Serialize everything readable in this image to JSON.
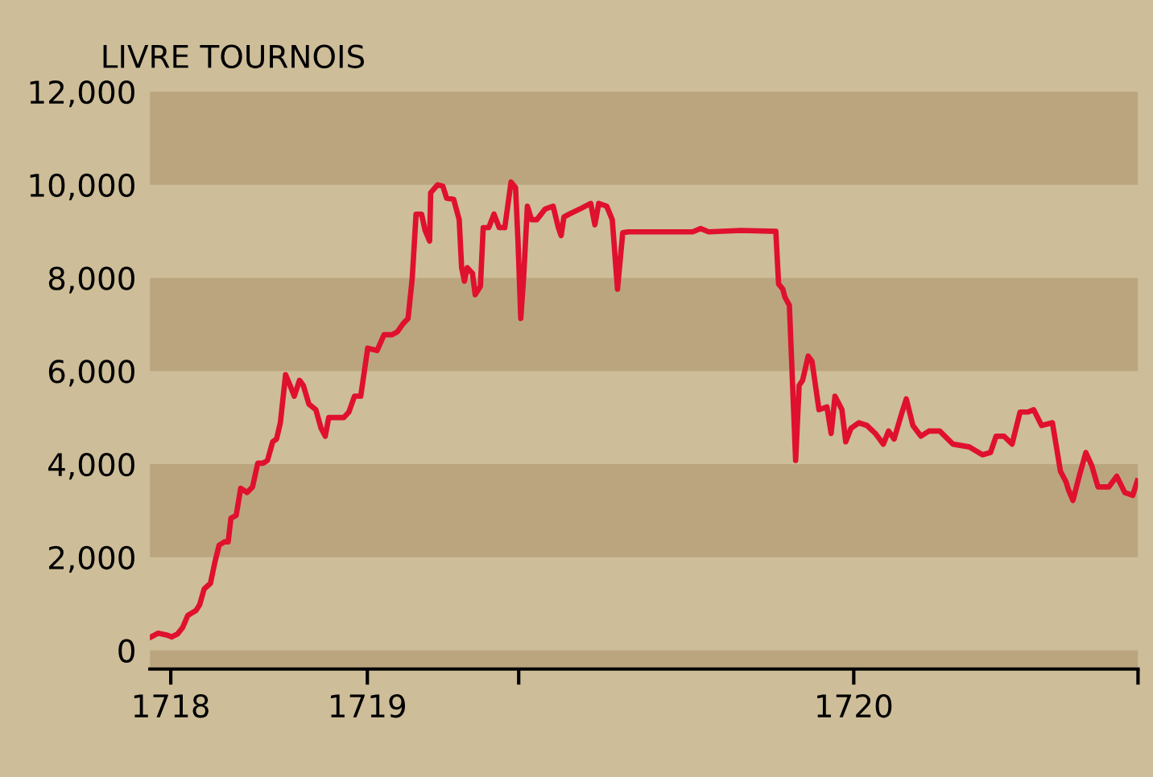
{
  "chart_data": {
    "type": "line",
    "ylabel": "LIVRE TOURNOIS",
    "x": [
      1717.944,
      1717.964,
      1717.988,
      1718.003,
      1718.019,
      1718.034,
      1718.049,
      1718.073,
      1718.083,
      1718.096,
      1718.114,
      1718.127,
      1718.139,
      1718.154,
      1718.165,
      1718.173,
      1718.188,
      1718.201,
      1718.219,
      1718.235,
      1718.25,
      1718.265,
      1718.278,
      1718.293,
      1718.304,
      1718.315,
      1718.33,
      1718.343,
      1718.355,
      1718.37,
      1718.381,
      1718.397,
      1718.417,
      1718.432,
      1718.444,
      1718.454,
      1718.474,
      1718.497,
      1718.512,
      1718.528,
      1718.546,
      1718.566,
      1718.593,
      1718.613,
      1718.636,
      1718.651,
      1718.667,
      1718.682,
      1718.694,
      1718.705,
      1718.721,
      1718.731,
      1718.744,
      1718.747,
      1718.767,
      1718.782,
      1718.793,
      1718.813,
      1718.829,
      1718.836,
      1718.844,
      1718.852,
      1718.867,
      1718.875,
      1718.89,
      1718.898,
      1718.914,
      1718.929,
      1718.944,
      1718.96,
      1718.978,
      1718.991,
      1718.998,
      1719.006,
      1719.014,
      1719.025,
      1719.037,
      1719.052,
      1719.076,
      1719.099,
      1719.114,
      1719.122,
      1719.13,
      1719.145,
      1719.176,
      1719.207,
      1719.219,
      1719.23,
      1719.253,
      1719.269,
      1719.284,
      1719.299,
      1719.315,
      1719.5,
      1719.523,
      1719.546,
      1719.639,
      1719.739,
      1719.747,
      1719.759,
      1719.765,
      1719.778,
      1719.796,
      1719.806,
      1719.816,
      1719.832,
      1719.843,
      1719.863,
      1719.886,
      1719.898,
      1719.909,
      1719.929,
      1719.94,
      1719.955,
      1719.978,
      1720.001,
      1720.025,
      1720.048,
      1720.063,
      1720.079,
      1720.102,
      1720.114,
      1720.133,
      1720.156,
      1720.179,
      1720.21,
      1720.248,
      1720.295,
      1720.333,
      1720.356,
      1720.372,
      1720.395,
      1720.418,
      1720.441,
      1720.464,
      1720.48,
      1720.503,
      1720.534,
      1720.557,
      1720.573,
      1720.58,
      1720.593,
      1720.611,
      1720.63,
      1720.647,
      1720.665,
      1720.696,
      1720.719,
      1720.742,
      1720.765,
      1720.778
    ],
    "series": [
      {
        "color": "#e0102f",
        "values": [
          290,
          370,
          330,
          290,
          350,
          490,
          750,
          860,
          980,
          1320,
          1440,
          1900,
          2260,
          2330,
          2330,
          2840,
          2900,
          3480,
          3390,
          3510,
          4020,
          4020,
          4080,
          4480,
          4540,
          4890,
          5920,
          5690,
          5460,
          5800,
          5690,
          5290,
          5170,
          4770,
          4600,
          5000,
          5000,
          5000,
          5120,
          5460,
          5460,
          6490,
          6440,
          6780,
          6780,
          6840,
          7010,
          7130,
          7990,
          9370,
          9370,
          9020,
          8790,
          9830,
          10000,
          9970,
          9710,
          9690,
          9250,
          8220,
          7930,
          8220,
          8100,
          7640,
          7820,
          9080,
          9080,
          9370,
          9080,
          9080,
          10060,
          9940,
          8790,
          7130,
          7990,
          9540,
          9250,
          9250,
          9480,
          9540,
          9080,
          8910,
          9310,
          9370,
          9480,
          9600,
          9140,
          9600,
          9540,
          9250,
          7760,
          8970,
          8990,
          8990,
          9060,
          8990,
          9020,
          9000,
          7870,
          7760,
          7590,
          7410,
          4080,
          5690,
          5800,
          6320,
          6210,
          5170,
          5230,
          4660,
          5460,
          5170,
          4480,
          4770,
          4890,
          4830,
          4660,
          4430,
          4710,
          4540,
          5120,
          5400,
          4830,
          4600,
          4710,
          4710,
          4430,
          4370,
          4200,
          4250,
          4600,
          4600,
          4430,
          5120,
          5120,
          5170,
          4830,
          4890,
          3850,
          3620,
          3450,
          3220,
          3740,
          4250,
          3970,
          3510,
          3510,
          3740,
          3390,
          3330,
          3640
        ]
      }
    ],
    "xlim": [
      1717.94,
      1720.78
    ],
    "xticks": [
      {
        "value": 1718,
        "label": "1718"
      },
      {
        "value": 1718.565,
        "label": "1719"
      },
      {
        "value": 1719,
        "label": null
      },
      {
        "value": 1719.963,
        "label": "1720"
      },
      {
        "value": 1720.78,
        "label": null
      }
    ],
    "ylim": [
      -400,
      12000
    ],
    "yticks": [
      {
        "value": 0,
        "label": "0"
      },
      {
        "value": 2000,
        "label": "2,000"
      },
      {
        "value": 4000,
        "label": "4,000"
      },
      {
        "value": 6000,
        "label": "6,000"
      },
      {
        "value": 8000,
        "label": "8,000"
      },
      {
        "value": 10000,
        "label": "10,000"
      },
      {
        "value": 12000,
        "label": "12,000"
      }
    ],
    "bands": [
      {
        "axis": "y",
        "from": -400,
        "to": 0,
        "color": "#bba57f"
      },
      {
        "axis": "y",
        "from": 2000,
        "to": 4000,
        "color": "#bba57f"
      },
      {
        "axis": "y",
        "from": 6000,
        "to": 8000,
        "color": "#bba57f"
      },
      {
        "axis": "y",
        "from": 10000,
        "to": 12000,
        "color": "#bba57f"
      }
    ],
    "grid": false,
    "legend": false,
    "line_style": "solid",
    "marker": "none"
  }
}
